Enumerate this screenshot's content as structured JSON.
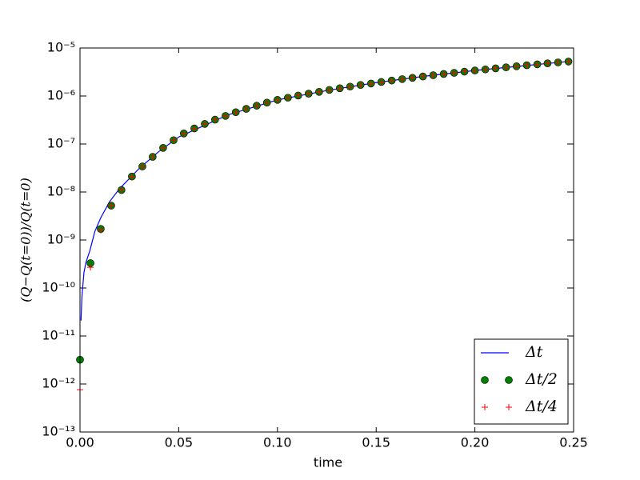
{
  "chart_data": {
    "type": "line",
    "xlabel": "time",
    "ylabel": "(Q−Q(t=0))/Q(t=0)",
    "xlim": [
      0,
      0.25
    ],
    "ylim": [
      1e-13,
      1e-05
    ],
    "ylog": true,
    "grid": false,
    "legend": "lower right",
    "xticks": [
      {
        "value": 0,
        "label": "0.00"
      },
      {
        "value": 0.05,
        "label": "0.05"
      },
      {
        "value": 0.1,
        "label": "0.10"
      },
      {
        "value": 0.15,
        "label": "0.15"
      },
      {
        "value": 0.2,
        "label": "0.20"
      },
      {
        "value": 0.25,
        "label": "0.25"
      }
    ],
    "yticks": [
      {
        "value": 1e-13,
        "label": "10⁻¹³"
      },
      {
        "value": 1e-12,
        "label": "10⁻¹²"
      },
      {
        "value": 1e-11,
        "label": "10⁻¹¹"
      },
      {
        "value": 1e-10,
        "label": "10⁻¹⁰"
      },
      {
        "value": 1e-09,
        "label": "10⁻⁹"
      },
      {
        "value": 1e-08,
        "label": "10⁻⁸"
      },
      {
        "value": 1e-07,
        "label": "10⁻⁷"
      },
      {
        "value": 1e-06,
        "label": "10⁻⁶"
      },
      {
        "value": 1e-05,
        "label": "10⁻⁵"
      }
    ],
    "series": [
      {
        "name": "Δt",
        "color": "#0000ff",
        "marker": "line",
        "x": [
          0.0005,
          0.001,
          0.002,
          0.003,
          0.005,
          0.0075,
          0.0105,
          0.015,
          0.02,
          0.03,
          0.04,
          0.05,
          0.075,
          0.1,
          0.125,
          0.15,
          0.175,
          0.2,
          0.2474
        ],
        "values": [
          2.1e-11,
          6.8e-11,
          2.1e-10,
          3.4e-10,
          6e-10,
          1.5e-09,
          2.9e-09,
          6.3e-09,
          1.17e-08,
          3.1e-08,
          7e-08,
          1.4e-07,
          4.05e-07,
          8.3e-07,
          1.3e-06,
          1.9e-06,
          2.6e-06,
          3.4e-06,
          5.25e-06
        ]
      },
      {
        "name": "Δt/2",
        "color": "#008000",
        "marker": "circle",
        "x": [
          0,
          0.0053,
          0.0105,
          0.0158,
          0.021,
          0.0263,
          0.0316,
          0.0368,
          0.0421,
          0.0474,
          0.0526,
          0.0579,
          0.0632,
          0.0684,
          0.0737,
          0.0789,
          0.0842,
          0.0895,
          0.0947,
          0.1,
          0.1053,
          0.1105,
          0.1158,
          0.1211,
          0.1263,
          0.1316,
          0.1368,
          0.1421,
          0.1474,
          0.1526,
          0.1579,
          0.1632,
          0.1684,
          0.1737,
          0.1789,
          0.1842,
          0.1895,
          0.1947,
          0.2,
          0.2053,
          0.2105,
          0.2158,
          0.2211,
          0.2263,
          0.2316,
          0.2368,
          0.2421,
          0.2474
        ],
        "values": [
          3.2e-12,
          3.3e-10,
          1.7e-09,
          5.2e-09,
          1.1e-08,
          2.1e-08,
          3.4e-08,
          5.4e-08,
          8.3e-08,
          1.2e-07,
          1.66e-07,
          2.11e-07,
          2.62e-07,
          3.21e-07,
          3.85e-07,
          4.59e-07,
          5.4e-07,
          6.27e-07,
          7.28e-07,
          8.3e-07,
          9.22e-07,
          1.02e-06,
          1.12e-06,
          1.22e-06,
          1.34e-06,
          1.45e-06,
          1.57e-06,
          1.7e-06,
          1.82e-06,
          1.96e-06,
          2.1e-06,
          2.25e-06,
          2.39e-06,
          2.55e-06,
          2.71e-06,
          2.88e-06,
          3.04e-06,
          3.22e-06,
          3.4e-06,
          3.58e-06,
          3.77e-06,
          3.96e-06,
          4.16e-06,
          4.37e-06,
          4.57e-06,
          4.79e-06,
          5.01e-06,
          5.23e-06
        ]
      },
      {
        "name": "Δt/4",
        "color": "#ff0000",
        "marker": "plus",
        "x": [
          0,
          0.0053,
          0.0105,
          0.0158,
          0.021,
          0.0263,
          0.0316,
          0.0368,
          0.0421,
          0.0474,
          0.0526,
          0.0579,
          0.0632,
          0.0684,
          0.0737,
          0.0789,
          0.0842,
          0.0895,
          0.0947,
          0.1,
          0.1053,
          0.1105,
          0.1158,
          0.1211,
          0.1263,
          0.1316,
          0.1368,
          0.1421,
          0.1474,
          0.1526,
          0.1579,
          0.1632,
          0.1684,
          0.1737,
          0.1789,
          0.1842,
          0.1895,
          0.1947,
          0.2,
          0.2053,
          0.2105,
          0.2158,
          0.2211,
          0.2263,
          0.2316,
          0.2368,
          0.2421,
          0.2474
        ],
        "values": [
          7.6e-13,
          2.7e-10,
          1.6e-09,
          5.2e-09,
          1.1e-08,
          2.1e-08,
          3.4e-08,
          5.4e-08,
          8.3e-08,
          1.2e-07,
          1.66e-07,
          2.11e-07,
          2.62e-07,
          3.21e-07,
          3.85e-07,
          4.59e-07,
          5.4e-07,
          6.27e-07,
          7.28e-07,
          8.3e-07,
          9.22e-07,
          1.02e-06,
          1.12e-06,
          1.22e-06,
          1.34e-06,
          1.45e-06,
          1.57e-06,
          1.7e-06,
          1.82e-06,
          1.96e-06,
          2.1e-06,
          2.25e-06,
          2.39e-06,
          2.55e-06,
          2.71e-06,
          2.88e-06,
          3.04e-06,
          3.22e-06,
          3.4e-06,
          3.58e-06,
          3.77e-06,
          3.96e-06,
          4.16e-06,
          4.37e-06,
          4.57e-06,
          4.79e-06,
          5.01e-06,
          5.23e-06
        ]
      }
    ]
  }
}
